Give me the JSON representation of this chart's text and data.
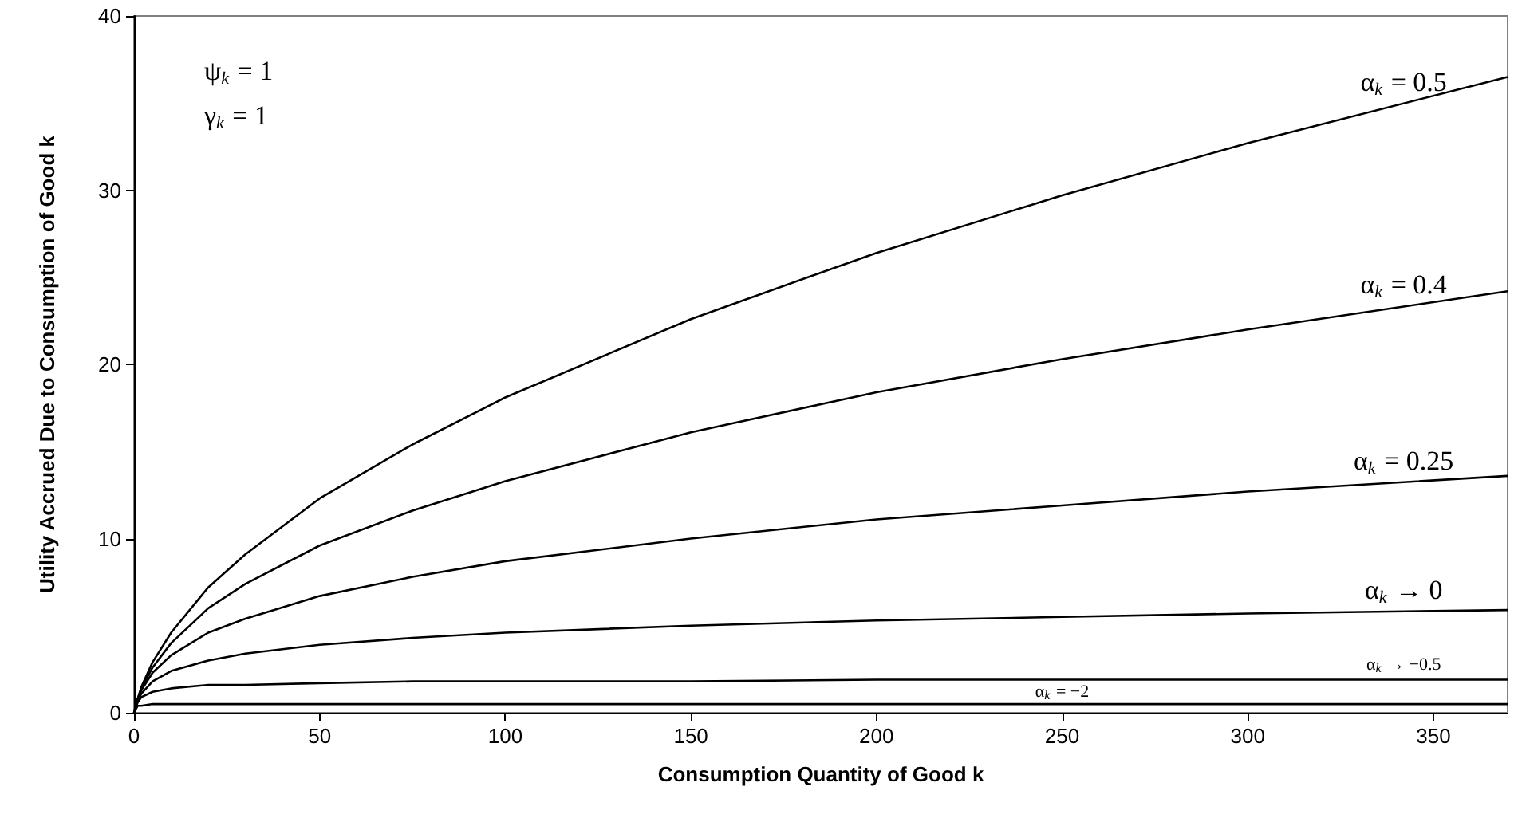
{
  "chart_data": {
    "type": "line",
    "xlabel": "Consumption Quantity of Good k",
    "ylabel": "Utility Accrued Due to Consumption of Good k",
    "x": [
      0,
      1,
      2,
      5,
      10,
      20,
      30,
      50,
      75,
      100,
      150,
      200,
      250,
      300,
      370
    ],
    "series": [
      {
        "name": "α$_{k}$ = 0.5",
        "color": "#000000",
        "values": [
          0,
          0.8,
          1.5,
          2.9,
          4.6,
          7.2,
          9.1,
          12.3,
          15.4,
          18.1,
          22.6,
          26.4,
          29.7,
          32.7,
          36.5
        ]
      },
      {
        "name": "α$_{k}$ = 0.4",
        "color": "#000000",
        "values": [
          0,
          0.8,
          1.4,
          2.6,
          4.0,
          6.0,
          7.4,
          9.6,
          11.6,
          13.3,
          16.1,
          18.4,
          20.3,
          22.0,
          24.2
        ]
      },
      {
        "name": "α$_{k}$ = 0.25",
        "color": "#000000",
        "values": [
          0,
          0.8,
          1.3,
          2.3,
          3.3,
          4.6,
          5.4,
          6.7,
          7.8,
          8.7,
          10.0,
          11.1,
          11.9,
          12.7,
          13.6
        ]
      },
      {
        "name": "α$_{k}$ → 0",
        "color": "#000000",
        "values": [
          0,
          0.7,
          1.1,
          1.8,
          2.4,
          3.0,
          3.4,
          3.9,
          4.3,
          4.6,
          5.0,
          5.3,
          5.5,
          5.7,
          5.9
        ]
      },
      {
        "name": "α$_{k}$ → −0.5",
        "color": "#000000",
        "values": [
          0,
          0.6,
          0.9,
          1.2,
          1.4,
          1.6,
          1.6,
          1.7,
          1.8,
          1.8,
          1.8,
          1.9,
          1.9,
          1.9,
          1.9
        ]
      },
      {
        "name": "α$_{k}$ = −2",
        "color": "#000000",
        "values": [
          0,
          0.4,
          0.4,
          0.5,
          0.5,
          0.5,
          0.5,
          0.5,
          0.5,
          0.5,
          0.5,
          0.5,
          0.5,
          0.5,
          0.5
        ]
      }
    ],
    "xlim": [
      0,
      370
    ],
    "xticks": [
      0,
      50,
      100,
      150,
      200,
      250,
      300,
      350
    ],
    "ylim": [
      0,
      40
    ],
    "yticks": [
      0,
      10,
      20,
      30,
      40
    ],
    "annotations": [
      "ψ$_{k}$ = 1",
      "γ$_{k}$ = 1"
    ],
    "grid": false,
    "legend": false,
    "marker": "none",
    "line_style": "solid"
  }
}
